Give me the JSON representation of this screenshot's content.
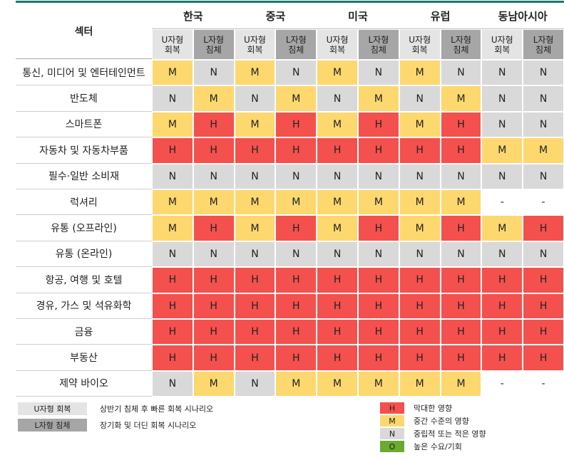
{
  "table": {
    "sector_header": "섹터",
    "regions": [
      "한국",
      "중국",
      "미국",
      "유럽",
      "동남아시아"
    ],
    "scenario_headers": [
      [
        "U자형",
        "회복"
      ],
      [
        "L자형",
        "침체"
      ]
    ],
    "rows": [
      {
        "sector": "통신, 미디어 및 엔터테인먼트",
        "cells": [
          "M",
          "N",
          "M",
          "N",
          "M",
          "N",
          "M",
          "N",
          "N",
          "N"
        ]
      },
      {
        "sector": "반도체",
        "cells": [
          "N",
          "M",
          "N",
          "M",
          "N",
          "M",
          "N",
          "M",
          "N",
          "N"
        ]
      },
      {
        "sector": "스마트폰",
        "cells": [
          "M",
          "H",
          "M",
          "H",
          "M",
          "H",
          "M",
          "H",
          "N",
          "N"
        ]
      },
      {
        "sector": "자동차 및 자동차부품",
        "cells": [
          "H",
          "H",
          "H",
          "H",
          "H",
          "H",
          "H",
          "H",
          "M",
          "M"
        ]
      },
      {
        "sector": "필수·일반 소비재",
        "cells": [
          "N",
          "N",
          "N",
          "N",
          "N",
          "N",
          "N",
          "N",
          "N",
          "N"
        ]
      },
      {
        "sector": "럭셔리",
        "cells": [
          "M",
          "M",
          "M",
          "M",
          "M",
          "M",
          "M",
          "M",
          "-",
          "-"
        ]
      },
      {
        "sector": "유통 (오프라인)",
        "cells": [
          "M",
          "H",
          "M",
          "H",
          "M",
          "H",
          "M",
          "H",
          "M",
          "H"
        ]
      },
      {
        "sector": "유통 (온라인)",
        "cells": [
          "N",
          "N",
          "N",
          "N",
          "N",
          "N",
          "N",
          "N",
          "N",
          "N"
        ]
      },
      {
        "sector": "항공, 여행 및 호텔",
        "cells": [
          "H",
          "H",
          "H",
          "H",
          "H",
          "H",
          "H",
          "H",
          "H",
          "H"
        ]
      },
      {
        "sector": "경유, 가스 및 석유화학",
        "cells": [
          "H",
          "H",
          "H",
          "H",
          "H",
          "H",
          "H",
          "H",
          "H",
          "H"
        ]
      },
      {
        "sector": "금융",
        "cells": [
          "H",
          "H",
          "H",
          "H",
          "H",
          "H",
          "H",
          "H",
          "H",
          "H"
        ]
      },
      {
        "sector": "부동산",
        "cells": [
          "H",
          "H",
          "H",
          "H",
          "H",
          "H",
          "H",
          "H",
          "H",
          "H"
        ]
      },
      {
        "sector": "제약 바이오",
        "cells": [
          "N",
          "M",
          "N",
          "M",
          "M",
          "M",
          "M",
          "M",
          "-",
          "-"
        ]
      }
    ],
    "colors": {
      "H": "#f4504e",
      "M": "#fdd86f",
      "N": "#d9d9d9",
      "O": "#6aab2f",
      "-": "#ffffff"
    },
    "scenario_colors": [
      "#e4e4e4",
      "#a6a6a6"
    ]
  },
  "legend": {
    "scenarios": [
      {
        "label": "U자형 회복",
        "desc": "상반기 침체 후 빠른 회복 시나리오"
      },
      {
        "label": "L자형 침체",
        "desc": "장기화 및 더딘 회복 시나리오"
      }
    ],
    "impacts": [
      {
        "code": "H",
        "desc": "막대한 영향"
      },
      {
        "code": "M",
        "desc": "중간 수준의 영향"
      },
      {
        "code": "N",
        "desc": "중립적 또는 적은 영향"
      },
      {
        "code": "O",
        "desc": "높은 수요/기회"
      }
    ]
  }
}
